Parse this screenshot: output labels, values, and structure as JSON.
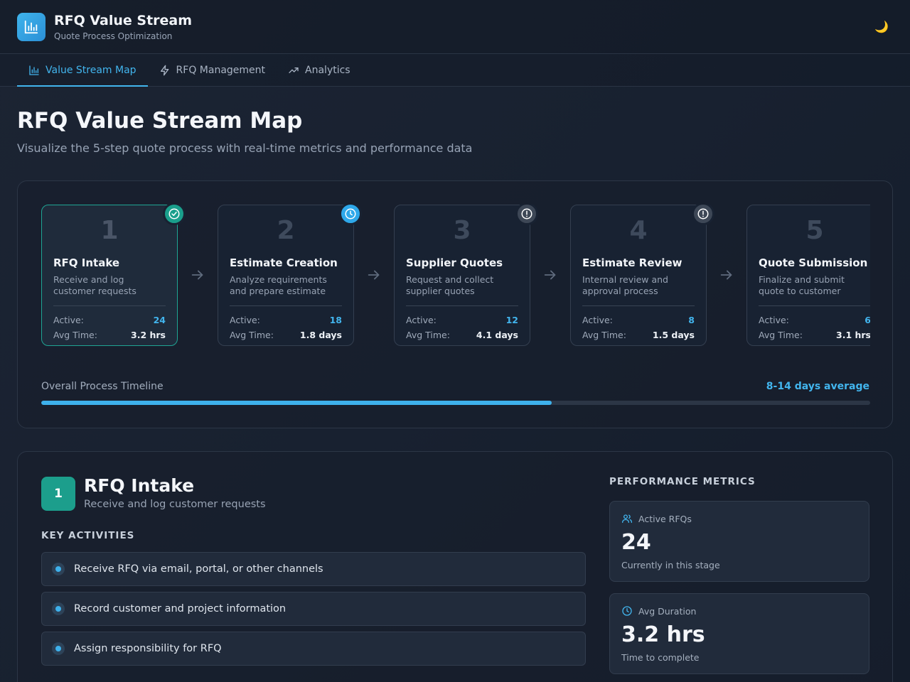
{
  "app": {
    "title": "RFQ Value Stream",
    "subtitle": "Quote Process Optimization",
    "theme_icon": "moon-icon"
  },
  "nav": {
    "tabs": [
      {
        "label": "Value Stream Map",
        "icon": "bar-chart-icon",
        "active": true
      },
      {
        "label": "RFQ Management",
        "icon": "lightning-icon",
        "active": false
      },
      {
        "label": "Analytics",
        "icon": "trending-up-icon",
        "active": false
      }
    ]
  },
  "page": {
    "title": "RFQ Value Stream Map",
    "subtitle": "Visualize the 5-step quote process with real-time metrics and performance data"
  },
  "stream": {
    "active_label": "Active:",
    "time_label": "Avg Time:",
    "steps": [
      {
        "number": "1",
        "name": "RFQ Intake",
        "description": "Receive and log customer requests",
        "active": "24",
        "avg_time": "3.2 hrs",
        "status": "completed",
        "status_icon": "check-circle-icon"
      },
      {
        "number": "2",
        "name": "Estimate Creation",
        "description": "Analyze requirements and prepare estimate",
        "active": "18",
        "avg_time": "1.8 days",
        "status": "in-progress",
        "status_icon": "clock-icon"
      },
      {
        "number": "3",
        "name": "Supplier Quotes",
        "description": "Request and collect supplier quotes",
        "active": "12",
        "avg_time": "4.1 days",
        "status": "pending",
        "status_icon": "alert-icon"
      },
      {
        "number": "4",
        "name": "Estimate Review",
        "description": "Internal review and approval process",
        "active": "8",
        "avg_time": "1.5 days",
        "status": "pending",
        "status_icon": "alert-icon"
      },
      {
        "number": "5",
        "name": "Quote Submission",
        "description": "Finalize and submit quote to customer",
        "active": "6",
        "avg_time": "3.1 hrs",
        "status": "pending",
        "status_icon": "alert-icon"
      }
    ],
    "timeline": {
      "label": "Overall Process Timeline",
      "value": "8-14 days average",
      "progress": 0.616
    }
  },
  "detail": {
    "number": "1",
    "title": "RFQ Intake",
    "subtitle": "Receive and log customer requests",
    "activities_label": "KEY ACTIVITIES",
    "activities": [
      "Receive RFQ via email, portal, or other channels",
      "Record customer and project information",
      "Assign responsibility for RFQ"
    ],
    "metrics_label": "PERFORMANCE METRICS",
    "metrics": [
      {
        "label": "Active RFQs",
        "icon": "users-icon",
        "value": "24",
        "note": "Currently in this stage"
      },
      {
        "label": "Avg Duration",
        "icon": "clock-icon",
        "value": "3.2 hrs",
        "note": "Time to complete"
      }
    ]
  },
  "colors": {
    "accent": "#42b5ee",
    "teal": "#1c9e8c",
    "background": "#182130"
  }
}
